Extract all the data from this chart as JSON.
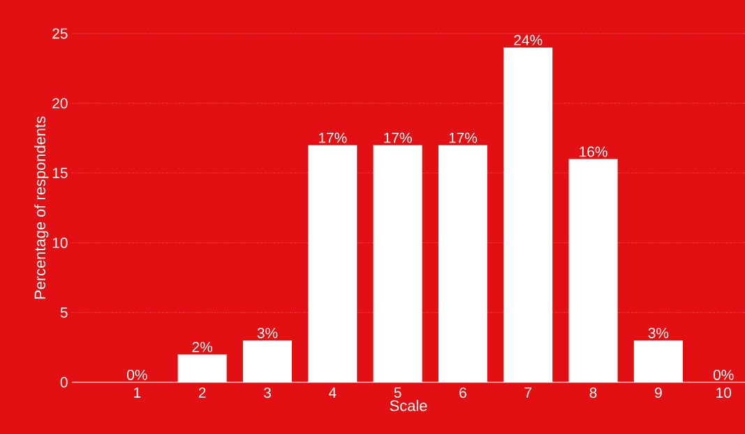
{
  "chart_data": {
    "type": "bar",
    "xlabel": "Scale",
    "ylabel": "Percentage of respondents",
    "categories": [
      "1",
      "2",
      "3",
      "4",
      "5",
      "6",
      "7",
      "8",
      "9",
      "10"
    ],
    "values": [
      0,
      2,
      3,
      17,
      17,
      17,
      24,
      16,
      3,
      0
    ],
    "value_labels": [
      "0%",
      "2%",
      "3%",
      "17%",
      "17%",
      "17%",
      "24%",
      "16%",
      "3%",
      "0%"
    ],
    "color": "#ffffff",
    "ylim": [
      0,
      25
    ],
    "yticks": [
      0,
      5,
      10,
      15,
      20,
      25
    ],
    "grid": "y"
  }
}
